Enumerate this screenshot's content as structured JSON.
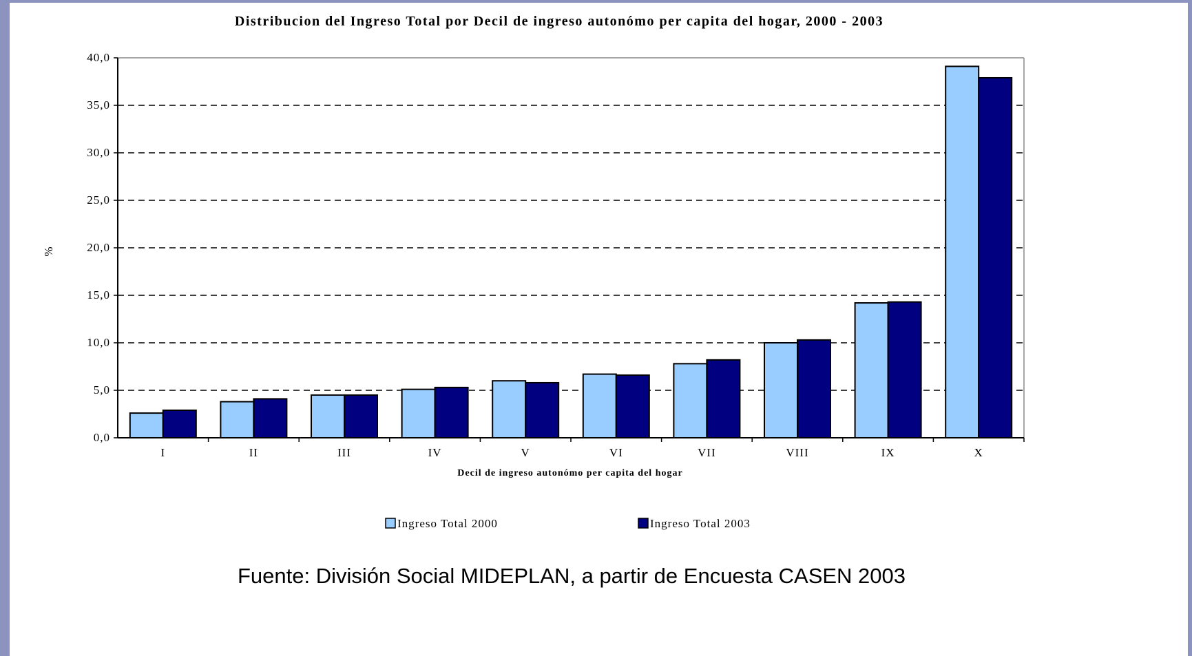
{
  "chart_data": {
    "type": "bar",
    "title": "Distribucion del Ingreso Total por Decil de ingreso autonómo per capita del hogar, 2000 - 2003",
    "xlabel": "Decil de ingreso autonómo per capita del hogar",
    "ylabel": "%",
    "ylim": [
      0,
      40
    ],
    "yticks": [
      "0,0",
      "5,0",
      "10,0",
      "15,0",
      "20,0",
      "25,0",
      "30,0",
      "35,0",
      "40,0"
    ],
    "grid": "horizontal dashed",
    "legend_position": "bottom",
    "categories": [
      "I",
      "II",
      "III",
      "IV",
      "V",
      "VI",
      "VII",
      "VIII",
      "IX",
      "X"
    ],
    "series": [
      {
        "name": "Ingreso Total 2000",
        "color": "#99ccff",
        "values": [
          2.6,
          3.8,
          4.5,
          5.1,
          6.0,
          6.7,
          7.8,
          10.0,
          14.2,
          39.1
        ]
      },
      {
        "name": "Ingreso Total 2003",
        "color": "#000080",
        "values": [
          2.9,
          4.1,
          4.5,
          5.3,
          5.8,
          6.6,
          8.2,
          10.3,
          14.3,
          37.9
        ]
      }
    ]
  },
  "source": "Fuente: División Social MIDEPLAN, a partir de Encuesta CASEN 2003"
}
